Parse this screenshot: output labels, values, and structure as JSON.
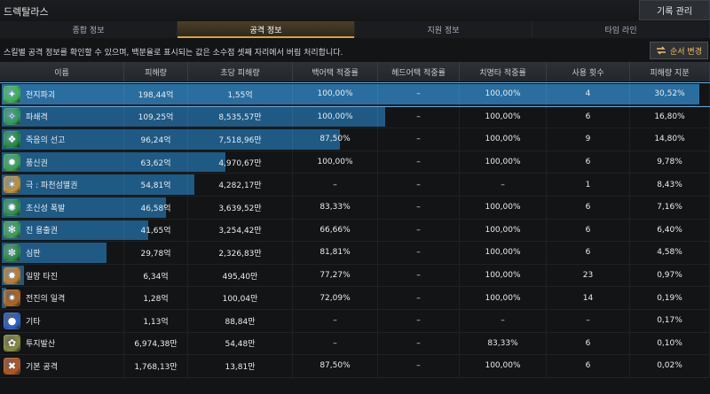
{
  "app": {
    "title": "드렉탈라스",
    "record_button": "기록 관리"
  },
  "tabs": [
    {
      "label": "종합 정보",
      "active": false
    },
    {
      "label": "공격 정보",
      "active": true
    },
    {
      "label": "지원 정보",
      "active": false
    },
    {
      "label": "타임 라인",
      "active": false
    }
  ],
  "info": {
    "text": "스킬별 공격 정보를 확인할 수 있으며, 백분율로 표시되는 값은 소수점 셋째 자리에서 버림 처리합니다.",
    "order_button": "순서 변경"
  },
  "columns": [
    "이름",
    "피해량",
    "초당 피해량",
    "백어택 적중률",
    "헤드어택 적중률",
    "치명타 적중률",
    "사용 횟수",
    "피해량 지분"
  ],
  "colors": {
    "bar": "#1f5a84",
    "highlight": "#2a6ea0",
    "accent": "#d6a23a"
  },
  "rows": [
    {
      "name": "천지파괴",
      "damage": "198,44억",
      "dps": "1,55억",
      "back": "100,00%",
      "head": "–",
      "crit": "100,00%",
      "count": "4",
      "share": "30,52%",
      "bar": 1.0,
      "icon": "#3bb34a",
      "glyph": "✦",
      "highlight": true
    },
    {
      "name": "파쇄격",
      "damage": "109,25억",
      "dps": "8,535,57만",
      "back": "100,00%",
      "head": "–",
      "crit": "100,00%",
      "count": "6",
      "share": "16,80%",
      "bar": 0.55,
      "icon": "#2f9a5a",
      "glyph": "✧"
    },
    {
      "name": "죽음의 선고",
      "damage": "96,24억",
      "dps": "7,518,96만",
      "back": "87,50%",
      "head": "–",
      "crit": "100,00%",
      "count": "9",
      "share": "14,80%",
      "bar": 0.485,
      "icon": "#1f8c3c",
      "glyph": "❖"
    },
    {
      "name": "풍신권",
      "damage": "63,62억",
      "dps": "4,970,67만",
      "back": "100,00%",
      "head": "–",
      "crit": "100,00%",
      "count": "6",
      "share": "9,78%",
      "bar": 0.32,
      "icon": "#3aa34c",
      "glyph": "✹"
    },
    {
      "name": "극 : 파천섬멸권",
      "damage": "54,81억",
      "dps": "4,282,17만",
      "back": "–",
      "head": "–",
      "crit": "–",
      "count": "1",
      "share": "8,43%",
      "bar": 0.276,
      "icon": "#c8902f",
      "glyph": "✶"
    },
    {
      "name": "초신성 폭발",
      "damage": "46,58억",
      "dps": "3,639,52만",
      "back": "83,33%",
      "head": "–",
      "crit": "100,00%",
      "count": "6",
      "share": "7,16%",
      "bar": 0.235,
      "icon": "#2c8d44",
      "glyph": "✺"
    },
    {
      "name": "진 용출권",
      "damage": "41,65억",
      "dps": "3,254,42만",
      "back": "66,66%",
      "head": "–",
      "crit": "100,00%",
      "count": "6",
      "share": "6,40%",
      "bar": 0.21,
      "icon": "#3a9e4e",
      "glyph": "✻"
    },
    {
      "name": "심판",
      "damage": "29,78억",
      "dps": "2,326,83만",
      "back": "81,81%",
      "head": "–",
      "crit": "100,00%",
      "count": "6",
      "share": "4,58%",
      "bar": 0.15,
      "icon": "#2b8a3f",
      "glyph": "✼"
    },
    {
      "name": "일망 타진",
      "damage": "6,34억",
      "dps": "495,40만",
      "back": "77,27%",
      "head": "–",
      "crit": "100,00%",
      "count": "23",
      "share": "0,97%",
      "bar": 0.032,
      "icon": "#c77b1f",
      "glyph": "✸"
    },
    {
      "name": "전진의 일격",
      "damage": "1,28억",
      "dps": "100,04만",
      "back": "72,09%",
      "head": "–",
      "crit": "100,00%",
      "count": "14",
      "share": "0,19%",
      "bar": 0.0065,
      "icon": "#b5651c",
      "glyph": "✷"
    },
    {
      "name": "기타",
      "damage": "1,13억",
      "dps": "88,84만",
      "back": "–",
      "head": "–",
      "crit": "–",
      "count": "–",
      "share": "0,17%",
      "bar": 0.0,
      "icon": "#2a5fd0",
      "glyph": "●"
    },
    {
      "name": "투지발산",
      "damage": "6,974,38만",
      "dps": "54,48만",
      "back": "–",
      "head": "–",
      "crit": "83,33%",
      "count": "6",
      "share": "0,10%",
      "bar": 0.0,
      "icon": "#8a8f3a",
      "glyph": "✿"
    },
    {
      "name": "기본 공격",
      "damage": "1,768,13만",
      "dps": "13,81만",
      "back": "87,50%",
      "head": "–",
      "crit": "100,00%",
      "count": "6",
      "share": "0,02%",
      "bar": 0.0,
      "icon": "#b9551d",
      "glyph": "✖"
    }
  ]
}
